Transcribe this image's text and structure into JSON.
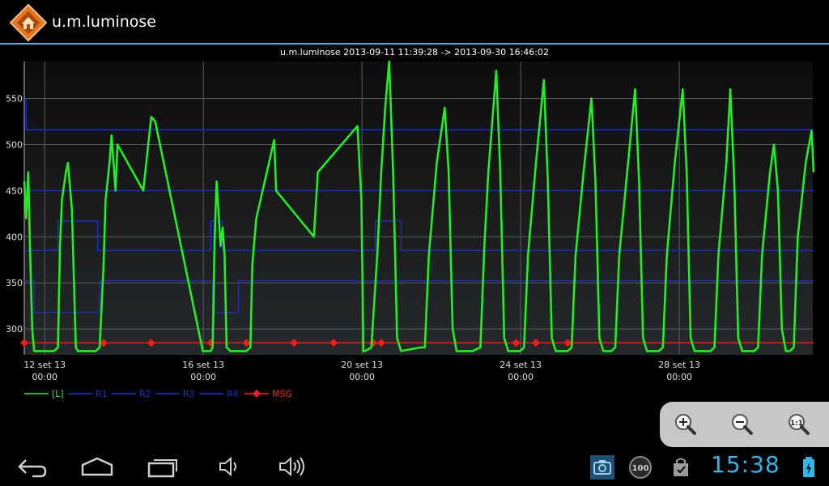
{
  "app": {
    "title": "u.m.luminose",
    "icon": "home-icon"
  },
  "chart": {
    "header": "u.m.luminose 2013-09-11 11:39:28 -> 2013-09-30 16:46:02"
  },
  "chart_data": {
    "type": "line",
    "title": "u.m.luminose 2013-09-11 11:39:28 -> 2013-09-30 16:46:02",
    "ylim": [
      272,
      590
    ],
    "y_ticks": [
      "300",
      "350",
      "400",
      "450",
      "500",
      "550"
    ],
    "y_tick_values": [
      300,
      350,
      400,
      450,
      500,
      550
    ],
    "xlim_days": [
      "2013-09-11 11:39",
      "2013-09-30 16:46"
    ],
    "x_ticks": [
      {
        "date": "12 set 13",
        "time": "00:00",
        "day_offset": 0.514
      },
      {
        "date": "16 set 13",
        "time": "00:00",
        "day_offset": 4.514
      },
      {
        "date": "20 set 13",
        "time": "00:00",
        "day_offset": 8.514
      },
      {
        "date": "24 set 13",
        "time": "00:00",
        "day_offset": 12.514
      },
      {
        "date": "28 set 13",
        "time": "00:00",
        "day_offset": 16.514
      }
    ],
    "grid": true,
    "legend_placement": "bottom",
    "series": [
      {
        "name": "[L]",
        "color": "#22ee22",
        "points": [
          [
            0.0,
            460
          ],
          [
            0.05,
            420
          ],
          [
            0.1,
            470
          ],
          [
            0.15,
            380
          ],
          [
            0.2,
            300
          ],
          [
            0.25,
            276
          ],
          [
            0.5,
            276
          ],
          [
            0.75,
            276
          ],
          [
            0.85,
            280
          ],
          [
            0.9,
            390
          ],
          [
            0.95,
            440
          ],
          [
            1.05,
            470
          ],
          [
            1.1,
            480
          ],
          [
            1.2,
            430
          ],
          [
            1.3,
            280
          ],
          [
            1.35,
            276
          ],
          [
            1.8,
            276
          ],
          [
            1.9,
            280
          ],
          [
            2.0,
            370
          ],
          [
            2.05,
            440
          ],
          [
            2.15,
            480
          ],
          [
            2.2,
            510
          ],
          [
            2.3,
            450
          ],
          [
            2.35,
            500
          ],
          [
            3.0,
            450
          ],
          [
            3.2,
            530
          ],
          [
            3.3,
            525
          ],
          [
            4.5,
            276
          ],
          [
            4.7,
            276
          ],
          [
            4.75,
            280
          ],
          [
            4.8,
            400
          ],
          [
            4.85,
            460
          ],
          [
            4.95,
            390
          ],
          [
            5.0,
            410
          ],
          [
            5.05,
            380
          ],
          [
            5.1,
            280
          ],
          [
            5.2,
            276
          ],
          [
            5.6,
            276
          ],
          [
            5.7,
            280
          ],
          [
            5.75,
            370
          ],
          [
            5.85,
            420
          ],
          [
            6.3,
            505
          ],
          [
            6.35,
            450
          ],
          [
            7.3,
            400
          ],
          [
            7.4,
            470
          ],
          [
            8.4,
            520
          ],
          [
            8.5,
            440
          ],
          [
            8.55,
            276
          ],
          [
            8.6,
            276
          ],
          [
            8.75,
            280
          ],
          [
            8.9,
            380
          ],
          [
            9.0,
            470
          ],
          [
            9.1,
            540
          ],
          [
            9.2,
            590
          ],
          [
            9.3,
            470
          ],
          [
            9.4,
            290
          ],
          [
            9.5,
            276
          ],
          [
            10.0,
            280
          ],
          [
            10.1,
            280
          ],
          [
            10.2,
            380
          ],
          [
            10.4,
            480
          ],
          [
            10.6,
            540
          ],
          [
            10.7,
            470
          ],
          [
            10.8,
            300
          ],
          [
            10.9,
            276
          ],
          [
            11.3,
            276
          ],
          [
            11.5,
            280
          ],
          [
            11.6,
            390
          ],
          [
            11.7,
            470
          ],
          [
            11.9,
            580
          ],
          [
            12.0,
            470
          ],
          [
            12.1,
            290
          ],
          [
            12.2,
            276
          ],
          [
            12.5,
            276
          ],
          [
            12.6,
            280
          ],
          [
            12.7,
            380
          ],
          [
            12.9,
            480
          ],
          [
            13.1,
            570
          ],
          [
            13.2,
            460
          ],
          [
            13.3,
            290
          ],
          [
            13.4,
            276
          ],
          [
            13.7,
            276
          ],
          [
            13.8,
            280
          ],
          [
            13.9,
            380
          ],
          [
            14.1,
            470
          ],
          [
            14.3,
            550
          ],
          [
            14.4,
            460
          ],
          [
            14.5,
            290
          ],
          [
            14.6,
            276
          ],
          [
            14.8,
            276
          ],
          [
            14.9,
            280
          ],
          [
            15.0,
            380
          ],
          [
            15.2,
            470
          ],
          [
            15.4,
            560
          ],
          [
            15.5,
            460
          ],
          [
            15.6,
            290
          ],
          [
            15.7,
            276
          ],
          [
            16.0,
            276
          ],
          [
            16.1,
            280
          ],
          [
            16.2,
            380
          ],
          [
            16.4,
            480
          ],
          [
            16.6,
            560
          ],
          [
            16.7,
            470
          ],
          [
            16.8,
            290
          ],
          [
            16.9,
            276
          ],
          [
            17.3,
            276
          ],
          [
            17.4,
            280
          ],
          [
            17.5,
            380
          ],
          [
            17.7,
            480
          ],
          [
            17.8,
            560
          ],
          [
            17.9,
            460
          ],
          [
            18.0,
            290
          ],
          [
            18.1,
            276
          ],
          [
            18.4,
            276
          ],
          [
            18.5,
            280
          ],
          [
            18.6,
            380
          ],
          [
            18.8,
            470
          ],
          [
            18.9,
            500
          ],
          [
            19.0,
            450
          ],
          [
            19.1,
            300
          ],
          [
            19.2,
            276
          ],
          [
            19.3,
            276
          ],
          [
            19.4,
            280
          ],
          [
            19.5,
            400
          ],
          [
            19.7,
            480
          ],
          [
            19.85,
            515
          ],
          [
            19.9,
            470
          ]
        ]
      },
      {
        "name": "R1",
        "color": "#1f2fcf",
        "points": [
          [
            0.0,
            548
          ],
          [
            0.05,
            548
          ],
          [
            0.05,
            516
          ],
          [
            19.9,
            516
          ]
        ]
      },
      {
        "name": "R2",
        "color": "#1f2fcf",
        "points": [
          [
            0.0,
            450
          ],
          [
            19.9,
            450
          ]
        ]
      },
      {
        "name": "R3",
        "color": "#1f2fcf",
        "points": [
          [
            0.0,
            385
          ],
          [
            0.85,
            385
          ],
          [
            0.85,
            417
          ],
          [
            1.85,
            417
          ],
          [
            1.85,
            385
          ],
          [
            4.7,
            385
          ],
          [
            4.7,
            417
          ],
          [
            5.0,
            417
          ],
          [
            5.0,
            385
          ],
          [
            8.85,
            385
          ],
          [
            8.85,
            417
          ],
          [
            9.5,
            417
          ],
          [
            9.5,
            385
          ],
          [
            19.9,
            385
          ]
        ]
      },
      {
        "name": "R4",
        "color": "#1f2fcf",
        "points": [
          [
            0.0,
            352
          ],
          [
            0.25,
            352
          ],
          [
            0.25,
            318
          ],
          [
            1.9,
            318
          ],
          [
            1.9,
            352
          ],
          [
            4.75,
            352
          ],
          [
            4.75,
            318
          ],
          [
            5.4,
            318
          ],
          [
            5.4,
            352
          ],
          [
            19.9,
            352
          ]
        ]
      },
      {
        "name": "MSG",
        "color": "#ff1a1a",
        "points": [
          [
            0.0,
            285
          ],
          [
            19.9,
            285
          ]
        ],
        "markers": [
          0.0,
          2.0,
          3.2,
          4.7,
          5.6,
          6.8,
          7.8,
          8.8,
          9.0,
          12.4,
          12.9,
          13.7
        ]
      }
    ]
  },
  "legend": [
    {
      "label": "[L]",
      "color": "#22ee22",
      "marker": false
    },
    {
      "label": "R1",
      "color": "#1f2fcf",
      "marker": false
    },
    {
      "label": "R2",
      "color": "#1f2fcf",
      "marker": false
    },
    {
      "label": "R3",
      "color": "#1f2fcf",
      "marker": false
    },
    {
      "label": "R4",
      "color": "#1f2fcf",
      "marker": false
    },
    {
      "label": "MSG",
      "color": "#ff1a1a",
      "marker": true
    }
  ],
  "zoom": {
    "buttons": [
      {
        "name": "zoom-in-icon"
      },
      {
        "name": "zoom-out-icon"
      },
      {
        "name": "zoom-reset-icon"
      }
    ]
  },
  "navbar": {
    "buttons": [
      "back-icon",
      "home-icon",
      "recent-apps-icon",
      "volume-down-icon",
      "volume-up-icon"
    ]
  },
  "status": {
    "time": "15:38",
    "icons": [
      "screenshot-icon",
      "badge-100-icon",
      "shopping-bag-icon",
      "battery-icon"
    ],
    "badge_text": "100"
  },
  "colors": {
    "accent": "#33b5e5",
    "series_main": "#22ee22",
    "threshold": "#1f2fcf",
    "msg": "#ff1a1a"
  }
}
